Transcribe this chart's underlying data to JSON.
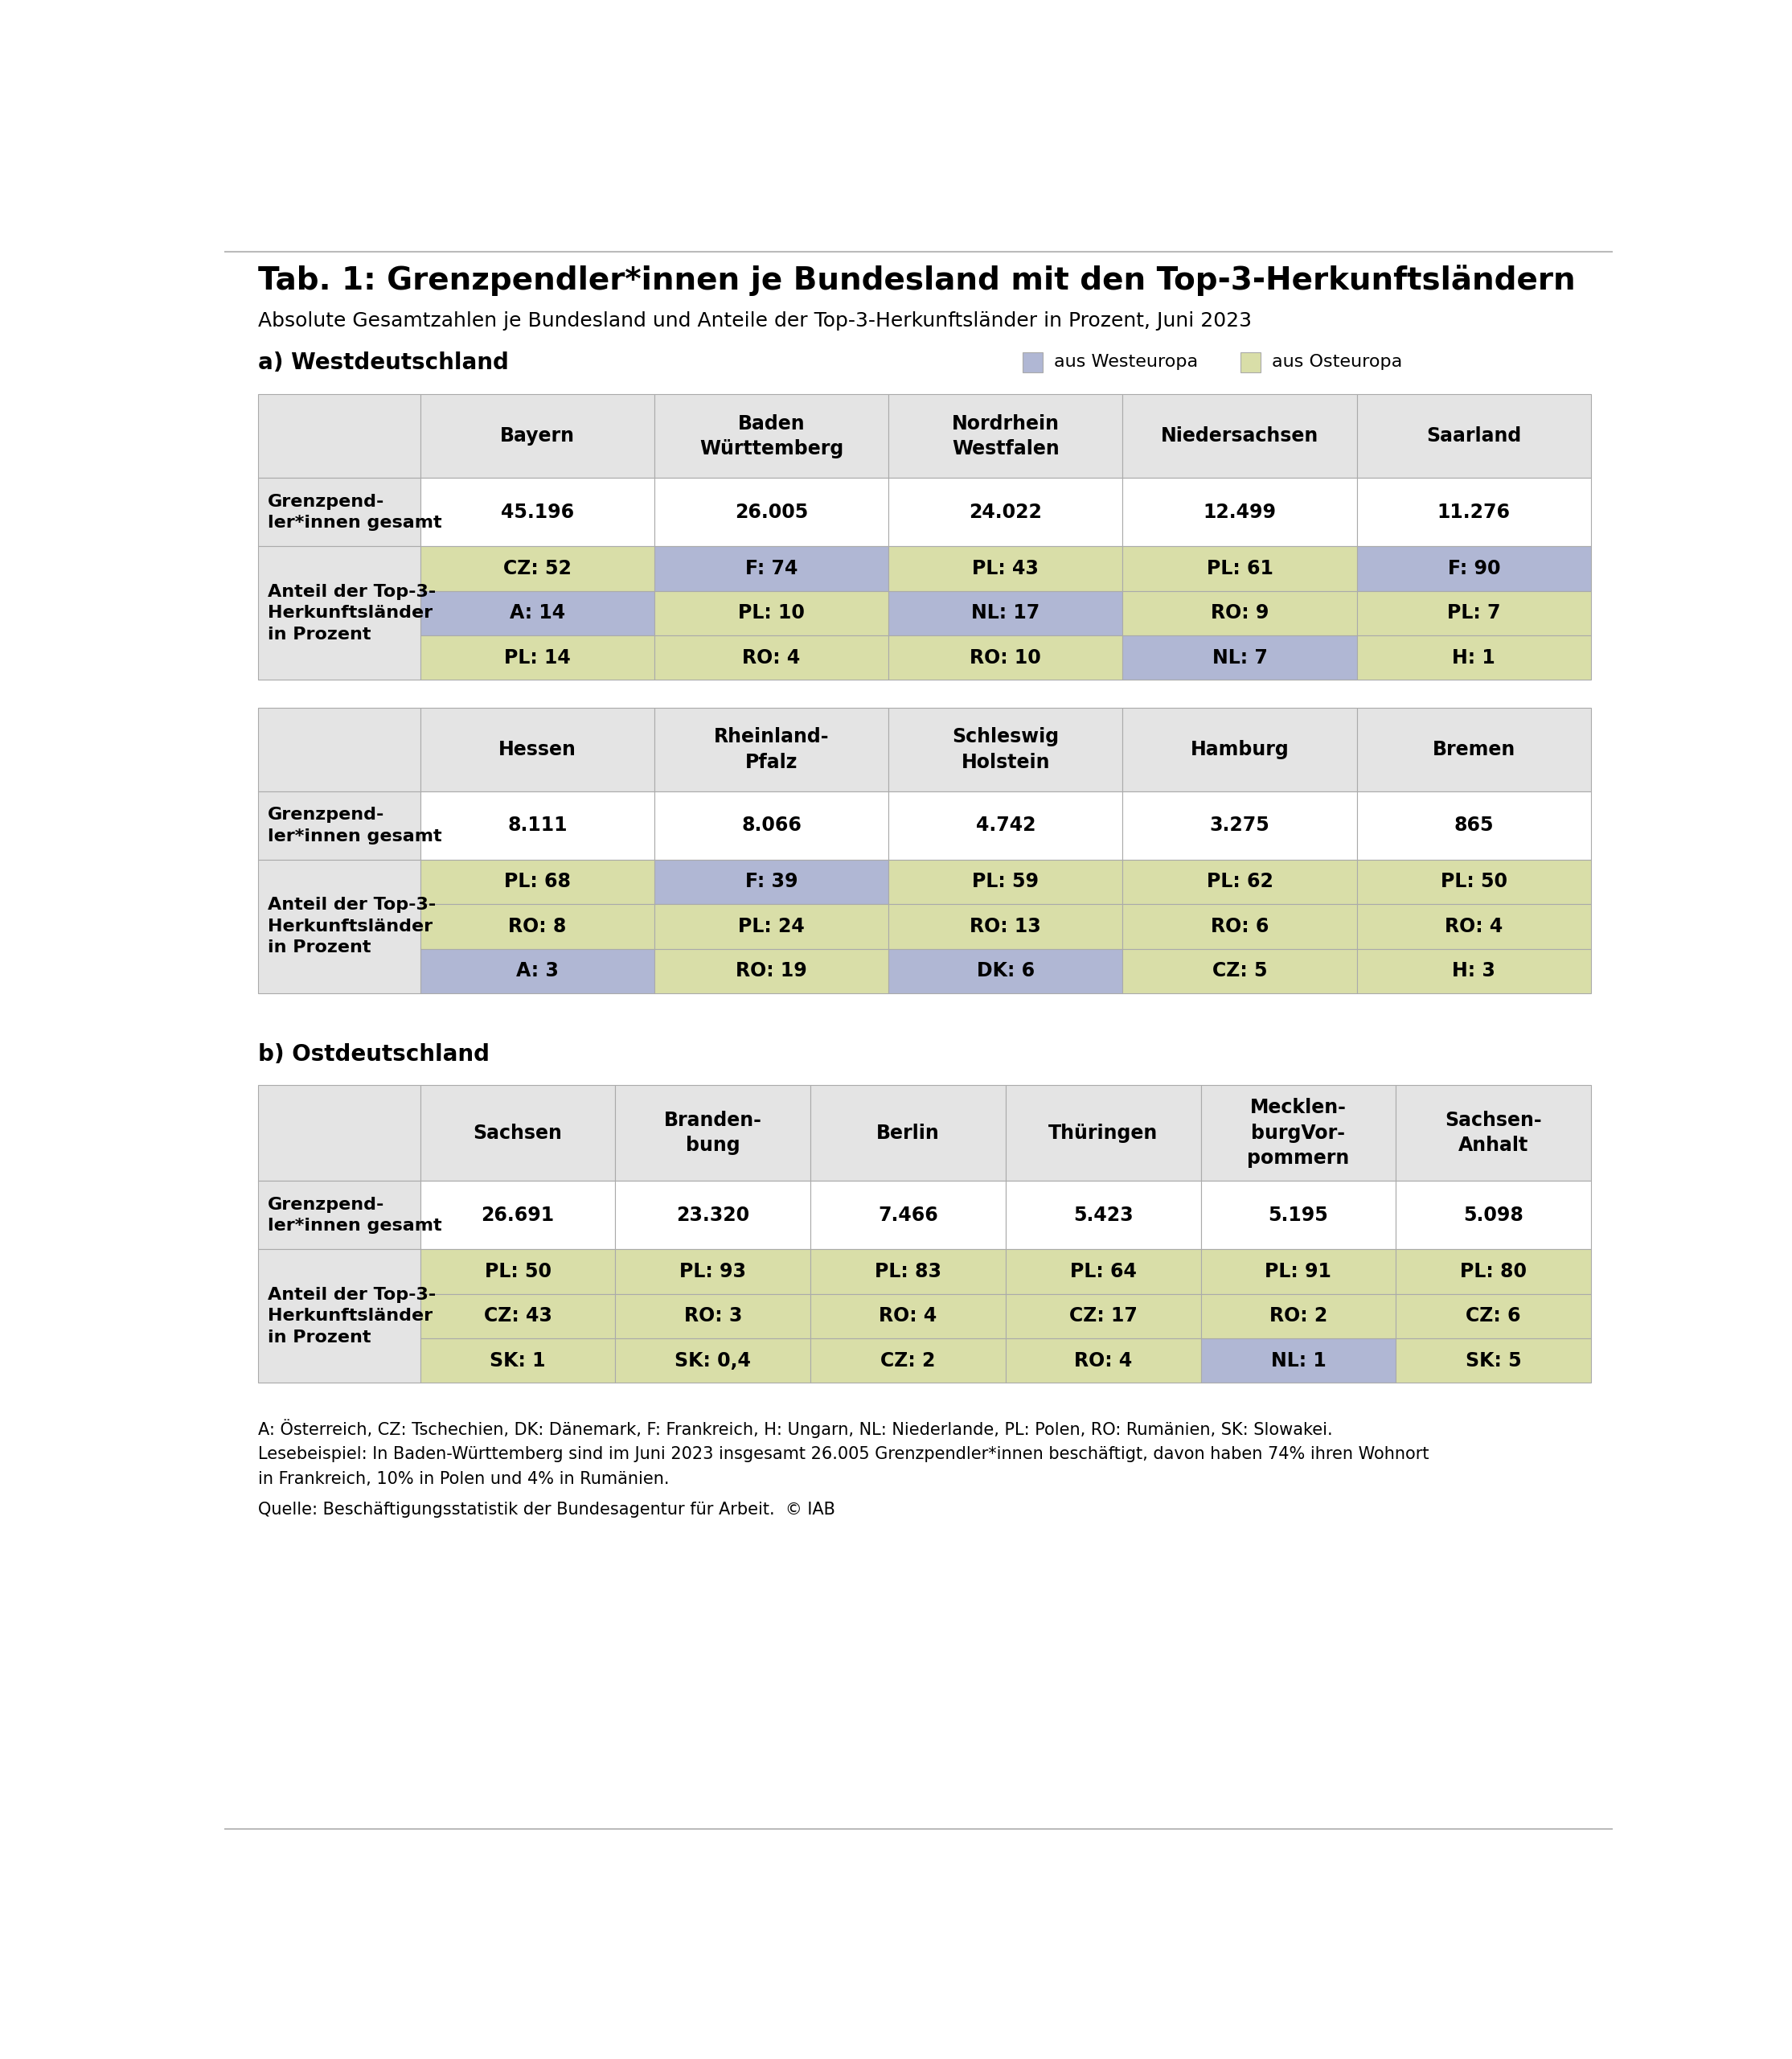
{
  "title": "Tab. 1: Grenzpendler*innen je Bundesland mit den Top-3-Herkunftsländern",
  "subtitle": "Absolute Gesamtzahlen je Bundesland und Anteile der Top-3-Herkunftsländer in Prozent, Juni 2023",
  "section_a_label": "a) Westdeutschland",
  "section_b_label": "b) Ostdeutschland",
  "legend_west": "aus Westeuropa",
  "legend_east": "aus Osteuropa",
  "color_west": "#b0b7d4",
  "color_east": "#d9dea8",
  "color_header_bg": "#e4e4e4",
  "color_white": "#ffffff",
  "color_border": "#aaaaaa",
  "bg_color": "#ffffff",
  "footnote1": "A: Österreich, CZ: Tschechien, DK: Dänemark, F: Frankreich, H: Ungarn, NL: Niederlande, PL: Polen, RO: Rumänien, SK: Slowakei.",
  "footnote2": "Lesebeispiel: In Baden-Württemberg sind im Juni 2023 insgesamt 26.005 Grenzpendler*innen beschäftigt, davon haben 74% ihren Wohnort",
  "footnote3": "in Frankreich, 10% in Polen und 4% in Rumänien.",
  "footnote4": "Quelle: Beschäftigungsstatistik der Bundesagentur für Arbeit.  © IAB",
  "table_a1": {
    "columns": [
      "Bayern",
      "Baden\nWürttemberg",
      "Nordrhein\nWestfalen",
      "Niedersachsen",
      "Saarland"
    ],
    "total": [
      "45.196",
      "26.005",
      "24.022",
      "12.499",
      "11.276"
    ],
    "top3": [
      [
        {
          "text": "CZ: 52",
          "color": "east"
        },
        {
          "text": "F: 74",
          "color": "west"
        },
        {
          "text": "PL: 43",
          "color": "east"
        },
        {
          "text": "PL: 61",
          "color": "east"
        },
        {
          "text": "F: 90",
          "color": "west"
        }
      ],
      [
        {
          "text": "A: 14",
          "color": "west"
        },
        {
          "text": "PL: 10",
          "color": "east"
        },
        {
          "text": "NL: 17",
          "color": "west"
        },
        {
          "text": "RO: 9",
          "color": "east"
        },
        {
          "text": "PL: 7",
          "color": "east"
        }
      ],
      [
        {
          "text": "PL: 14",
          "color": "east"
        },
        {
          "text": "RO: 4",
          "color": "east"
        },
        {
          "text": "RO: 10",
          "color": "east"
        },
        {
          "text": "NL: 7",
          "color": "west"
        },
        {
          "text": "H: 1",
          "color": "east"
        }
      ]
    ]
  },
  "table_a2": {
    "columns": [
      "Hessen",
      "Rheinland-\nPfalz",
      "Schleswig\nHolstein",
      "Hamburg",
      "Bremen"
    ],
    "total": [
      "8.111",
      "8.066",
      "4.742",
      "3.275",
      "865"
    ],
    "top3": [
      [
        {
          "text": "PL: 68",
          "color": "east"
        },
        {
          "text": "F: 39",
          "color": "west"
        },
        {
          "text": "PL: 59",
          "color": "east"
        },
        {
          "text": "PL: 62",
          "color": "east"
        },
        {
          "text": "PL: 50",
          "color": "east"
        }
      ],
      [
        {
          "text": "RO: 8",
          "color": "east"
        },
        {
          "text": "PL: 24",
          "color": "east"
        },
        {
          "text": "RO: 13",
          "color": "east"
        },
        {
          "text": "RO: 6",
          "color": "east"
        },
        {
          "text": "RO: 4",
          "color": "east"
        }
      ],
      [
        {
          "text": "A: 3",
          "color": "west"
        },
        {
          "text": "RO: 19",
          "color": "east"
        },
        {
          "text": "DK: 6",
          "color": "west"
        },
        {
          "text": "CZ: 5",
          "color": "east"
        },
        {
          "text": "H: 3",
          "color": "east"
        }
      ]
    ]
  },
  "table_b": {
    "columns": [
      "Sachsen",
      "Branden-\nbung",
      "Berlin",
      "Thüringen",
      "Mecklen-\nburgVor-\npommern",
      "Sachsen-\nAnhalt"
    ],
    "total": [
      "26.691",
      "23.320",
      "7.466",
      "5.423",
      "5.195",
      "5.098"
    ],
    "top3": [
      [
        {
          "text": "PL: 50",
          "color": "east"
        },
        {
          "text": "PL: 93",
          "color": "east"
        },
        {
          "text": "PL: 83",
          "color": "east"
        },
        {
          "text": "PL: 64",
          "color": "east"
        },
        {
          "text": "PL: 91",
          "color": "east"
        },
        {
          "text": "PL: 80",
          "color": "east"
        }
      ],
      [
        {
          "text": "CZ: 43",
          "color": "east"
        },
        {
          "text": "RO: 3",
          "color": "east"
        },
        {
          "text": "RO: 4",
          "color": "east"
        },
        {
          "text": "CZ: 17",
          "color": "east"
        },
        {
          "text": "RO: 2",
          "color": "east"
        },
        {
          "text": "CZ: 6",
          "color": "east"
        }
      ],
      [
        {
          "text": "SK: 1",
          "color": "east"
        },
        {
          "text": "SK: 0,4",
          "color": "east"
        },
        {
          "text": "CZ: 2",
          "color": "east"
        },
        {
          "text": "RO: 4",
          "color": "east"
        },
        {
          "text": "NL: 1",
          "color": "west"
        },
        {
          "text": "SK: 5",
          "color": "east"
        }
      ]
    ]
  },
  "title_fontsize": 28,
  "subtitle_fontsize": 18,
  "section_fontsize": 20,
  "header_fontsize": 17,
  "cell_fontsize": 17,
  "rowlabel_fontsize": 16,
  "footnote_fontsize": 15
}
